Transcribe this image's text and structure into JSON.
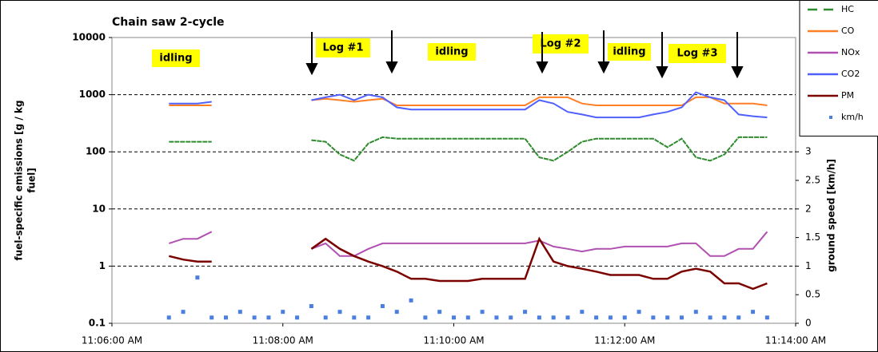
{
  "chart_data": {
    "type": "line",
    "title": "Chain saw 2-cycle",
    "ylabel": [
      "fuel-specific emissions [g / kg",
      "fuel]"
    ],
    "y2label": "ground speed [km/h]",
    "log_y": true,
    "grid": true,
    "legend": "top-right",
    "annotations": [
      "idling",
      "Log #1",
      "idling",
      "Log #2",
      "idling",
      "Log #3"
    ],
    "xlim": [
      "11:06:00 AM",
      "11:14:00 AM"
    ],
    "xticks": [
      "11:06:00 AM",
      "11:08:00 AM",
      "11:10:00 AM",
      "11:12:00 AM",
      "11:14:00 AM"
    ],
    "ylim": [
      0.1,
      10000
    ],
    "yticks": [
      0.1,
      1,
      10,
      100,
      1000,
      10000
    ],
    "y2lim": [
      0,
      5
    ],
    "y2ticks": [
      0,
      0.5,
      1,
      1.5,
      2,
      2.5,
      3
    ],
    "x": [
      "11:06:40 AM",
      "11:06:50 AM",
      "11:07:00 AM",
      "11:07:10 AM",
      "11:07:20 AM",
      "11:07:30 AM",
      "11:07:40 AM",
      "11:07:50 AM",
      "11:08:00 AM",
      "11:08:10 AM",
      "11:08:20 AM",
      "11:08:30 AM",
      "11:08:40 AM",
      "11:08:50 AM",
      "11:09:00 AM",
      "11:09:10 AM",
      "11:09:20 AM",
      "11:09:30 AM",
      "11:09:40 AM",
      "11:09:50 AM",
      "11:10:00 AM",
      "11:10:10 AM",
      "11:10:20 AM",
      "11:10:30 AM",
      "11:10:40 AM",
      "11:10:50 AM",
      "11:11:00 AM",
      "11:11:10 AM",
      "11:11:20 AM",
      "11:11:30 AM",
      "11:11:40 AM",
      "11:11:50 AM",
      "11:12:00 AM",
      "11:12:10 AM",
      "11:12:20 AM",
      "11:12:30 AM",
      "11:12:40 AM",
      "11:12:50 AM",
      "11:13:00 AM",
      "11:13:10 AM",
      "11:13:20 AM",
      "11:13:30 AM",
      "11:13:40 AM"
    ],
    "series": [
      {
        "name": "HC",
        "color": "#2e8b2e",
        "dashed": true,
        "values": [
          150,
          150,
          150,
          150,
          null,
          null,
          null,
          null,
          null,
          null,
          160,
          150,
          90,
          70,
          140,
          180,
          170,
          170,
          170,
          170,
          170,
          170,
          170,
          170,
          170,
          170,
          80,
          70,
          100,
          150,
          170,
          170,
          170,
          170,
          170,
          120,
          170,
          80,
          70,
          90,
          180,
          180,
          180
        ]
      },
      {
        "name": "CO",
        "color": "#ff7f27",
        "values": [
          650,
          650,
          650,
          650,
          null,
          null,
          null,
          null,
          null,
          null,
          800,
          850,
          800,
          750,
          800,
          850,
          650,
          650,
          650,
          650,
          650,
          650,
          650,
          650,
          650,
          650,
          900,
          900,
          900,
          700,
          650,
          650,
          650,
          650,
          650,
          650,
          650,
          900,
          900,
          700,
          700,
          700,
          650
        ]
      },
      {
        "name": "NOx",
        "color": "#b050b0",
        "values": [
          2.5,
          3,
          3,
          4,
          null,
          null,
          null,
          null,
          null,
          null,
          2,
          2.5,
          1.5,
          1.5,
          2,
          2.5,
          2.5,
          2.5,
          2.5,
          2.5,
          2.5,
          2.5,
          2.5,
          2.5,
          2.5,
          2.5,
          2.8,
          2.2,
          2,
          1.8,
          2,
          2,
          2.2,
          2.2,
          2.2,
          2.2,
          2.5,
          2.5,
          1.5,
          1.5,
          2,
          2,
          4
        ]
      },
      {
        "name": "CO2",
        "color": "#5060ff",
        "values": [
          700,
          700,
          700,
          750,
          null,
          null,
          null,
          null,
          null,
          null,
          800,
          900,
          1000,
          800,
          1000,
          900,
          600,
          550,
          550,
          550,
          550,
          550,
          550,
          550,
          550,
          550,
          800,
          700,
          500,
          450,
          400,
          400,
          400,
          400,
          450,
          500,
          600,
          1100,
          900,
          800,
          450,
          420,
          400
        ]
      },
      {
        "name": "PM",
        "color": "#7b0000",
        "values": [
          1.5,
          1.3,
          1.2,
          1.2,
          null,
          null,
          null,
          null,
          null,
          null,
          2,
          3,
          2,
          1.5,
          1.2,
          1,
          0.8,
          0.6,
          0.6,
          0.55,
          0.55,
          0.55,
          0.6,
          0.6,
          0.6,
          0.6,
          3,
          1.2,
          1,
          0.9,
          0.8,
          0.7,
          0.7,
          0.7,
          0.6,
          0.6,
          0.8,
          0.9,
          0.8,
          0.5,
          0.5,
          0.4,
          0.5
        ]
      },
      {
        "name": "km/h",
        "color": "#4a7fe0",
        "axis": "y2",
        "markers": true,
        "values": [
          0.1,
          0.2,
          0.8,
          0.1,
          0.1,
          0.2,
          0.1,
          0.1,
          0.2,
          0.1,
          0.3,
          0.1,
          0.2,
          0.1,
          0.1,
          0.3,
          0.2,
          0.4,
          0.1,
          0.2,
          0.1,
          0.1,
          0.2,
          0.1,
          0.1,
          0.2,
          0.1,
          0.1,
          0.1,
          0.2,
          0.1,
          0.1,
          0.1,
          0.2,
          0.1,
          0.1,
          0.1,
          0.2,
          0.1,
          0.1,
          0.1,
          0.2,
          0.1
        ]
      }
    ]
  }
}
